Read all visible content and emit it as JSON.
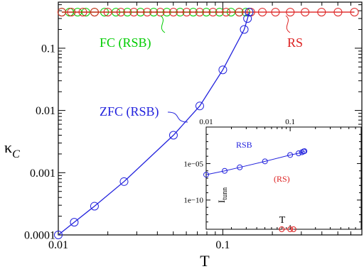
{
  "chart_data": [
    {
      "type": "line",
      "xlabel": "T",
      "ylabel": "κ",
      "ylabel_sub": "C",
      "xscale": "log",
      "yscale": "log",
      "xlim": [
        0.01,
        0.7
      ],
      "ylim": [
        0.0001,
        0.55
      ],
      "xticks": [
        {
          "v": 0.01,
          "label": "0.01"
        },
        {
          "v": 0.1,
          "label": "0.1"
        }
      ],
      "yticks": [
        {
          "v": 0.0001,
          "label": "0.0001"
        },
        {
          "v": 0.001,
          "label": "0.001"
        },
        {
          "v": 0.01,
          "label": "0.01"
        },
        {
          "v": 0.1,
          "label": "0.1"
        }
      ],
      "series": [
        {
          "name": "FC (RSB)",
          "color": "#00cc00",
          "dash": "solid",
          "x": [
            0.0105,
            0.0117,
            0.0131,
            0.0147,
            0.0166,
            0.0191,
            0.0224,
            0.0263,
            0.0316,
            0.038,
            0.0457,
            0.055,
            0.0661,
            0.0794,
            0.0955,
            0.1122,
            0.1259,
            0.138,
            0.1445
          ],
          "y": [
            0.38,
            0.38,
            0.38,
            0.38,
            0.38,
            0.38,
            0.38,
            0.38,
            0.38,
            0.38,
            0.38,
            0.38,
            0.38,
            0.38,
            0.38,
            0.38,
            0.38,
            0.38,
            0.38
          ]
        },
        {
          "name": "RS",
          "color": "#dd2222",
          "dash": "solid",
          "x": [
            0.0105,
            0.012,
            0.0141,
            0.0166,
            0.02,
            0.024,
            0.0288,
            0.0347,
            0.0417,
            0.0501,
            0.0603,
            0.0724,
            0.0871,
            0.1047,
            0.1259,
            0.1479,
            0.1738,
            0.2089,
            0.257,
            0.3162,
            0.3981,
            0.5012,
            0.631
          ],
          "y": [
            0.38,
            0.38,
            0.38,
            0.38,
            0.38,
            0.38,
            0.38,
            0.38,
            0.38,
            0.38,
            0.38,
            0.38,
            0.38,
            0.38,
            0.38,
            0.38,
            0.38,
            0.38,
            0.38,
            0.38,
            0.38,
            0.38,
            0.38
          ]
        },
        {
          "name": "ZFC (RSB)",
          "color": "#2222dd",
          "dash": "solid",
          "x": [
            0.01,
            0.0125,
            0.0166,
            0.0251,
            0.0501,
            0.0724,
            0.1,
            0.1349,
            0.1413,
            0.1445
          ],
          "y": [
            0.0001,
            0.00016,
            0.00029,
            0.00072,
            0.004,
            0.0118,
            0.045,
            0.2,
            0.3,
            0.38
          ]
        }
      ],
      "annotations": [
        {
          "text": "FC (RSB)",
          "color": "#00cc00"
        },
        {
          "text": "RS",
          "color": "#dd2222"
        },
        {
          "text": "ZFC (RSB)",
          "color": "#2222dd"
        }
      ]
    },
    {
      "type": "line",
      "xlabel": "T",
      "ylabel": "I",
      "ylabel_sub": "tunn",
      "xscale": "log",
      "yscale": "log",
      "xlim": [
        0.01,
        0.7
      ],
      "ylim": [
        1e-14,
        1
      ],
      "xticks": [
        {
          "v": 0.01,
          "label": "0.01"
        },
        {
          "v": 0.1,
          "label": "0.1"
        }
      ],
      "yticks": [
        {
          "v": 1e-05,
          "label": "1e−05"
        },
        {
          "v": 1e-10,
          "label": "1e−10"
        }
      ],
      "series": [
        {
          "name": "RSB",
          "color": "#2222dd",
          "dash": "solid",
          "x": [
            0.01,
            0.0166,
            0.0251,
            0.0501,
            0.1,
            0.1259,
            0.138,
            0.1445,
            0.1479
          ],
          "y": [
            3e-07,
            1e-06,
            3e-06,
            2e-05,
            0.00015,
            0.00025,
            0.00035,
            0.00045,
            0.0005
          ]
        },
        {
          "name": "(RS)",
          "color": "#dd2222",
          "dash": "dashed",
          "x": [
            0.1096,
            0.0794,
            0.1
          ],
          "y": [
            1e-14,
            1e-14,
            1e-14
          ]
        }
      ],
      "annotations": [
        {
          "text": "RSB",
          "color": "#2222dd"
        },
        {
          "text": "(RS)",
          "color": "#dd2222"
        }
      ]
    }
  ]
}
